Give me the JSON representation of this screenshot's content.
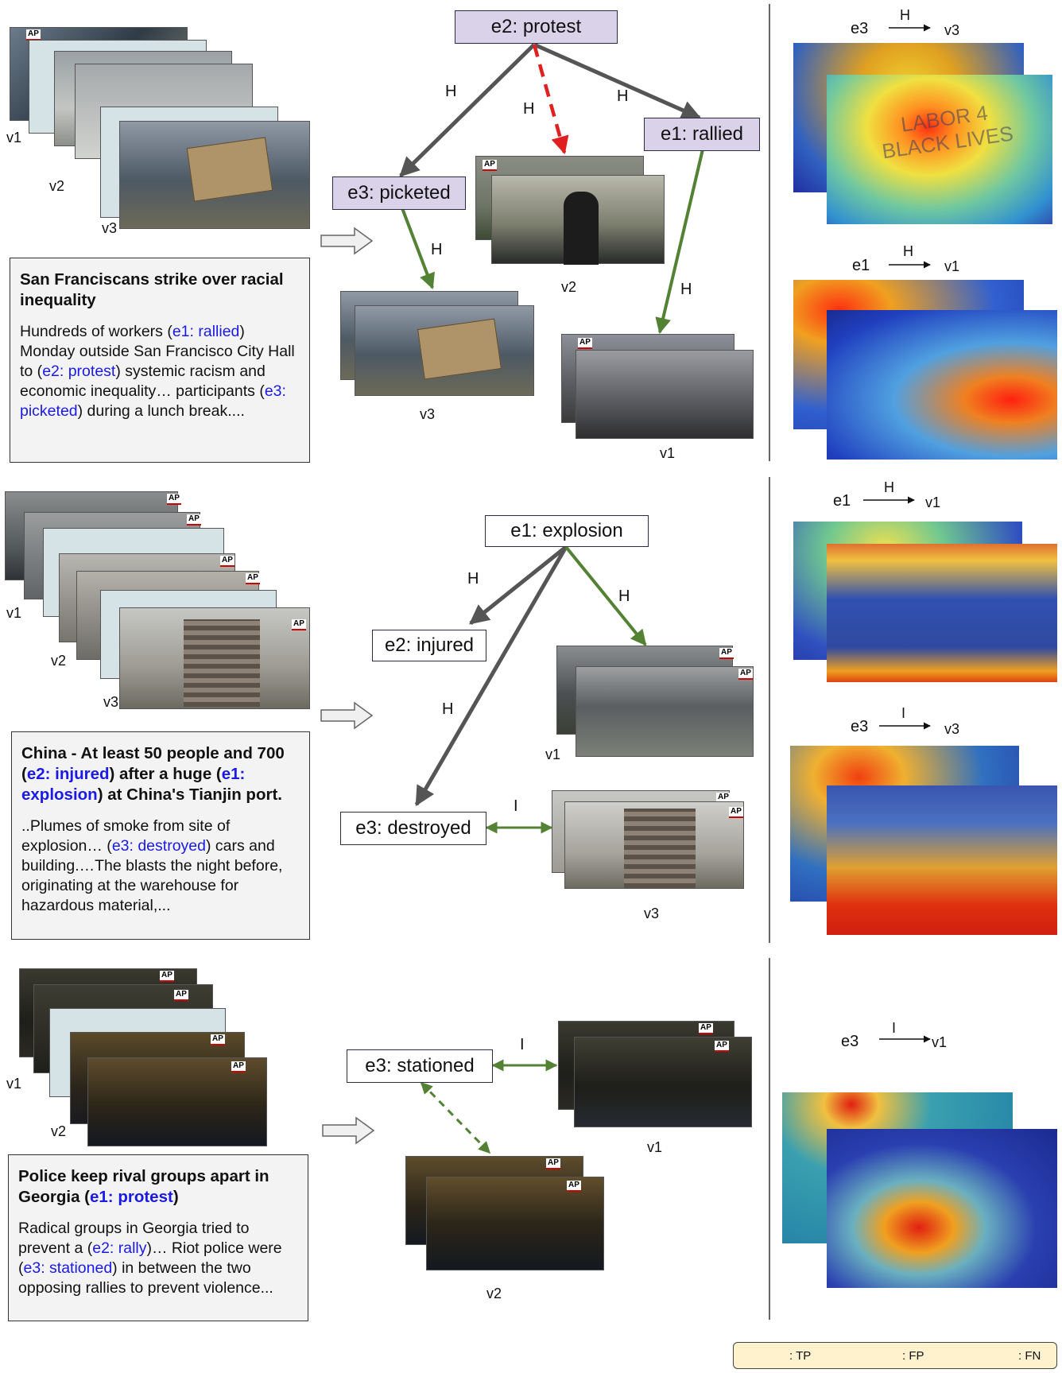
{
  "panels": [
    {
      "frames": [
        "v1",
        "v2",
        "v3"
      ],
      "news_title": "San Franciscans strike over racial inequality",
      "news_body": [
        {
          "t": "Hundreds of workers ("
        },
        {
          "t": "e1: rallied",
          "hl": true
        },
        {
          "t": ") Monday outside San Francisco City Hall to ("
        },
        {
          "t": "e2: protest",
          "hl": true
        },
        {
          "t": ") systemic racism and economic inequality… participants ("
        },
        {
          "t": "e3: picketed",
          "hl": true
        },
        {
          "t": ") during a lunch break...."
        }
      ],
      "nodes": {
        "top": "e2: protest",
        "left": "e3: picketed",
        "right": "e1: rallied"
      },
      "edge_labels": [
        "H",
        "H",
        "H",
        "H",
        "H"
      ],
      "frame_labels": {
        "a": "v2",
        "b": "v3",
        "c": "v1"
      },
      "heatmaps": [
        {
          "src": "e3",
          "rel": "H",
          "dst": "v3",
          "image_text": "LABOR 4 BLACK LIVES"
        },
        {
          "src": "e1",
          "rel": "H",
          "dst": "v1"
        }
      ]
    },
    {
      "frames": [
        "v1",
        "v2",
        "v3"
      ],
      "news_title_parts": [
        {
          "t": "China - At least 50 people and 700 ("
        },
        {
          "t": "e2: injured",
          "hl": true
        },
        {
          "t": ") after a huge ("
        },
        {
          "t": "e1: explosion",
          "hl": true
        },
        {
          "t": ") at China's Tianjin port."
        }
      ],
      "news_body": [
        {
          "t": "..Plumes of smoke from site of explosion… ("
        },
        {
          "t": "e3: destroyed",
          "hl": true
        },
        {
          "t": ") cars and building.…The blasts the night before, originating at the warehouse for hazardous material,..."
        }
      ],
      "nodes": {
        "top": "e1: explosion",
        "mid": "e2: injured",
        "bottom": "e3: destroyed"
      },
      "edge_labels": [
        "H",
        "H",
        "H",
        "I"
      ],
      "frame_labels": {
        "a": "v1",
        "b": "v3"
      },
      "heatmaps": [
        {
          "src": "e1",
          "rel": "H",
          "dst": "v1"
        },
        {
          "src": "e3",
          "rel": "I",
          "dst": "v3"
        }
      ]
    },
    {
      "frames": [
        "v1",
        "v2"
      ],
      "news_title_parts": [
        {
          "t": "Police keep rival groups apart in Georgia ("
        },
        {
          "t": "e1: protest",
          "hl": true
        },
        {
          "t": ")"
        }
      ],
      "news_body": [
        {
          "t": "Radical groups in Georgia tried to prevent a ("
        },
        {
          "t": "e2: rally",
          "hl": true
        },
        {
          "t": ")… Riot police were ("
        },
        {
          "t": "e3: stationed",
          "hl": true
        },
        {
          "t": ") in between the two opposing rallies to prevent violence..."
        }
      ],
      "nodes": {
        "main": "e3: stationed"
      },
      "edge_labels": [
        "I"
      ],
      "frame_labels": {
        "a": "v1",
        "b": "v2"
      },
      "heatmaps": [
        {
          "src": "e3",
          "rel": "I",
          "dst": "v1"
        }
      ]
    }
  ],
  "ap_mark": "AP",
  "legend": {
    "tp": ": TP",
    "fp": ": FP",
    "fn": ": FN"
  },
  "colors": {
    "tp": "#548235",
    "fp": "#548235",
    "fn": "#e02020",
    "node_purple": "#d9d2e9",
    "gray_edge": "#555555",
    "highlight": "#1a1ae6",
    "legend_bg": "#fff2cc"
  }
}
